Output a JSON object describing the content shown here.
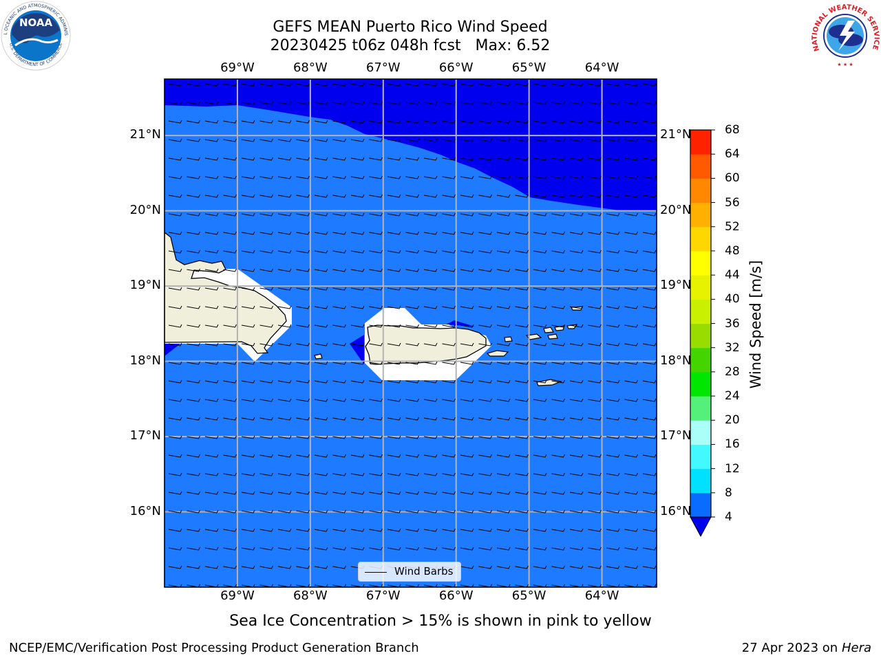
{
  "title": {
    "line1": "GEFS MEAN Puerto Rico Wind Speed",
    "line2": "20230425 t06z 048h fcst   Max: 6.52"
  },
  "axes": {
    "lon_labels": [
      "69°W",
      "68°W",
      "67°W",
      "66°W",
      "65°W",
      "64°W"
    ],
    "lon_values": [
      -69,
      -68,
      -67,
      -66,
      -65,
      -64
    ],
    "lat_labels": [
      "16°N",
      "17°N",
      "18°N",
      "19°N",
      "20°N",
      "21°N"
    ],
    "lat_values": [
      16,
      17,
      18,
      19,
      20,
      21
    ],
    "lon_range": [
      -70,
      -63.25
    ],
    "lat_range": [
      15,
      21.75
    ]
  },
  "colorbar": {
    "title": "Wind Speed [m/s]",
    "ticks": [
      "4",
      "8",
      "12",
      "16",
      "20",
      "24",
      "28",
      "32",
      "36",
      "40",
      "44",
      "48",
      "52",
      "56",
      "60",
      "64",
      "68"
    ],
    "colors": [
      "#0a6cff",
      "#00e0ff",
      "#44f8ff",
      "#aafff8",
      "#55f07a",
      "#00e600",
      "#44d400",
      "#99dd00",
      "#c8f000",
      "#e6f200",
      "#ffff00",
      "#ffd700",
      "#ffb000",
      "#ff8800",
      "#ff5a00",
      "#ff2200"
    ],
    "under_color": "#0000ee"
  },
  "legend": {
    "label": "Wind Barbs"
  },
  "caption": "Sea Ice Concentration > 15% is shown in pink to yellow",
  "footer": {
    "left": "NCEP/EMC/Verification Post Processing Product Generation Branch",
    "date": "27 Apr 2023 on ",
    "machine": "Hera"
  },
  "map_colors": {
    "ocean": "#1e7bff",
    "low_wind": "#0000ee",
    "land": "#efefdc",
    "mask": "#ffffff",
    "grid": "#b3b3b3"
  },
  "logos": {
    "noaa": "NOAA",
    "noaa_ring": "NATIONAL OCEANIC AND ATMOSPHERIC ADMINISTRATION",
    "noaa_ring_bottom": "U.S. DEPARTMENT OF COMMERCE",
    "nws_ring": "NATIONAL WEATHER SERVICE"
  }
}
